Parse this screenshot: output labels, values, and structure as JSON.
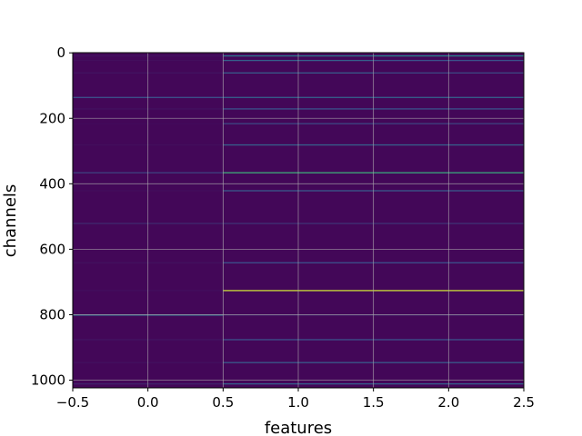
{
  "chart_data": {
    "type": "heatmap",
    "title": "",
    "xlabel": "features",
    "ylabel": "channels",
    "colormap": "viridis",
    "columns": [
      0,
      1,
      2
    ],
    "xlim": [
      -0.5,
      2.5
    ],
    "ylim": [
      1023.5,
      -0.5
    ],
    "y_inverted": true,
    "x_ticks": [
      "−0.5",
      "0.0",
      "0.5",
      "1.0",
      "1.5",
      "2.0",
      "2.5"
    ],
    "x_tick_values": [
      -0.5,
      0.0,
      0.5,
      1.0,
      1.5,
      2.0,
      2.5
    ],
    "y_ticks": [
      "0",
      "200",
      "400",
      "600",
      "800",
      "1000"
    ],
    "y_tick_values": [
      0,
      200,
      400,
      600,
      800,
      1000
    ],
    "grid": true,
    "background_value": 0.02,
    "highlights": [
      {
        "channel": 8,
        "values": [
          0.05,
          0.4,
          0.45
        ]
      },
      {
        "channel": 22,
        "values": [
          0.04,
          0.3,
          0.25
        ]
      },
      {
        "channel": 60,
        "values": [
          0.06,
          0.28,
          0.22
        ]
      },
      {
        "channel": 135,
        "values": [
          0.25,
          0.3,
          0.3
        ]
      },
      {
        "channel": 170,
        "values": [
          0.05,
          0.25,
          0.25
        ]
      },
      {
        "channel": 215,
        "values": [
          0.03,
          0.22,
          0.2
        ]
      },
      {
        "channel": 280,
        "values": [
          0.04,
          0.3,
          0.3
        ]
      },
      {
        "channel": 365,
        "values": [
          0.2,
          0.62,
          0.6
        ]
      },
      {
        "channel": 420,
        "values": [
          0.04,
          0.28,
          0.28
        ]
      },
      {
        "channel": 520,
        "values": [
          0.12,
          0.15,
          0.15
        ]
      },
      {
        "channel": 640,
        "values": [
          0.05,
          0.25,
          0.25
        ]
      },
      {
        "channel": 725,
        "values": [
          0.04,
          0.92,
          0.92
        ]
      },
      {
        "channel": 800,
        "values": [
          0.35,
          0.1,
          0.1
        ]
      },
      {
        "channel": 875,
        "values": [
          0.06,
          0.25,
          0.25
        ]
      },
      {
        "channel": 945,
        "values": [
          0.05,
          0.28,
          0.28
        ]
      },
      {
        "channel": 1010,
        "values": [
          0.1,
          0.3,
          0.3
        ]
      }
    ]
  }
}
